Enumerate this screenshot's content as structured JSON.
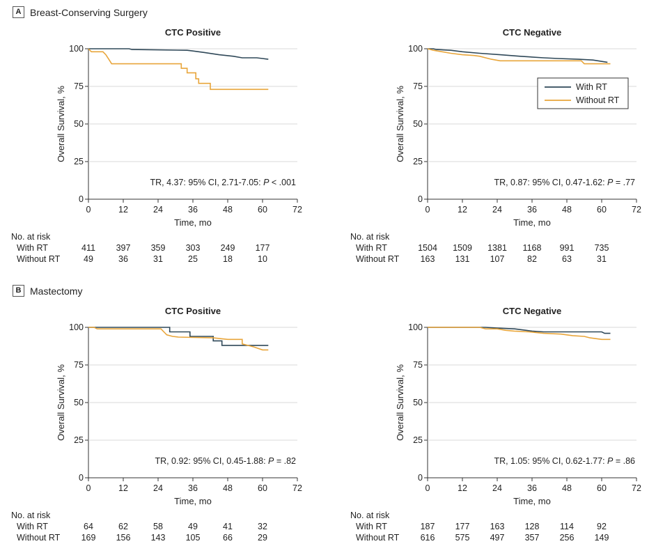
{
  "panels": [
    {
      "id": "A",
      "label": "Breast-Conserving Surgery"
    },
    {
      "id": "B",
      "label": "Mastectomy"
    }
  ],
  "colors": {
    "with_rt": "#2f4858",
    "without_rt": "#e8a53a",
    "axis": "#333333",
    "grid": "#d9d9d9"
  },
  "risk_header": "No. at risk",
  "chart_data": [
    {
      "type": "line",
      "panel": "A",
      "title": "CTC Positive",
      "xlabel": "Time, mo",
      "ylabel": "Overall Survival, %",
      "x_ticks": [
        0,
        12,
        24,
        36,
        48,
        60,
        72
      ],
      "y_ticks": [
        0,
        25,
        50,
        75,
        100
      ],
      "xlim": [
        0,
        72
      ],
      "ylim": [
        0,
        100
      ],
      "annotation": {
        "prefix": "TR, 4.37: 95% CI, 2.71-7.05: ",
        "p_label": "P",
        "p_value": " < .001"
      },
      "series": [
        {
          "name": "With RT",
          "points": [
            [
              0,
              100
            ],
            [
              14,
              100
            ],
            [
              15,
              99.5
            ],
            [
              34,
              99
            ],
            [
              36,
              98.5
            ],
            [
              40,
              97.5
            ],
            [
              45,
              96
            ],
            [
              50,
              95
            ],
            [
              53,
              94
            ],
            [
              58,
              94
            ],
            [
              60,
              93.5
            ],
            [
              62,
              93
            ]
          ]
        },
        {
          "name": "Without RT",
          "points": [
            [
              0,
              100
            ],
            [
              1,
              98
            ],
            [
              5,
              98
            ],
            [
              6,
              96
            ],
            [
              6,
              96
            ],
            [
              7,
              93
            ],
            [
              8,
              90
            ],
            [
              32,
              90
            ],
            [
              32,
              87
            ],
            [
              34,
              87
            ],
            [
              34,
              84
            ],
            [
              37,
              84
            ],
            [
              37,
              80
            ],
            [
              38,
              80
            ],
            [
              38,
              77
            ],
            [
              42,
              77
            ],
            [
              42,
              73
            ],
            [
              62,
              73
            ]
          ]
        }
      ],
      "risk_table": {
        "times": [
          0,
          12,
          24,
          36,
          48,
          60
        ],
        "rows": [
          {
            "label": "With RT",
            "values": [
              "411",
              "397",
              "359",
              "303",
              "249",
              "177"
            ]
          },
          {
            "label": "Without RT",
            "values": [
              "49",
              "36",
              "31",
              "25",
              "18",
              "10"
            ]
          }
        ]
      },
      "legend": null
    },
    {
      "type": "line",
      "panel": "A",
      "title": "CTC Negative",
      "xlabel": "Time, mo",
      "ylabel": "Overall Survival, %",
      "x_ticks": [
        0,
        12,
        24,
        36,
        48,
        60,
        72
      ],
      "y_ticks": [
        0,
        25,
        50,
        75,
        100
      ],
      "xlim": [
        0,
        72
      ],
      "ylim": [
        0,
        100
      ],
      "annotation": {
        "prefix": "TR, 0.87: 95% CI, 0.47-1.62: ",
        "p_label": "P",
        "p_value": " = .77"
      },
      "series": [
        {
          "name": "With RT",
          "points": [
            [
              0,
              100
            ],
            [
              2,
              100
            ],
            [
              3,
              99.5
            ],
            [
              8,
              99
            ],
            [
              12,
              98
            ],
            [
              18,
              97
            ],
            [
              25,
              96
            ],
            [
              32,
              95
            ],
            [
              40,
              94
            ],
            [
              45,
              93.5
            ],
            [
              52,
              93
            ],
            [
              57,
              92.5
            ],
            [
              62,
              91
            ]
          ]
        },
        {
          "name": "Without RT",
          "points": [
            [
              0,
              100
            ],
            [
              2,
              99
            ],
            [
              5,
              98
            ],
            [
              8,
              97
            ],
            [
              12,
              96
            ],
            [
              16,
              95.5
            ],
            [
              18,
              95
            ],
            [
              20,
              94
            ],
            [
              22,
              93
            ],
            [
              25,
              92
            ],
            [
              53,
              92
            ],
            [
              54,
              90
            ],
            [
              63,
              90
            ]
          ]
        }
      ],
      "risk_table": {
        "times": [
          0,
          12,
          24,
          36,
          48,
          60
        ],
        "rows": [
          {
            "label": "With RT",
            "values": [
              "1504",
              "1509",
              "1381",
              "1168",
              "991",
              "735"
            ]
          },
          {
            "label": "Without RT",
            "values": [
              "163",
              "131",
              "107",
              "82",
              "63",
              "31"
            ]
          }
        ]
      },
      "legend": {
        "position": "top-right",
        "entries": [
          "With RT",
          "Without RT"
        ]
      }
    },
    {
      "type": "line",
      "panel": "B",
      "title": "CTC Positive",
      "xlabel": "Time, mo",
      "ylabel": "Overall Survival, %",
      "x_ticks": [
        0,
        12,
        24,
        36,
        48,
        60,
        72
      ],
      "y_ticks": [
        0,
        25,
        50,
        75,
        100
      ],
      "xlim": [
        0,
        72
      ],
      "ylim": [
        0,
        100
      ],
      "annotation": {
        "prefix": "TR, 0.92: 95% CI, 0.45-1.88: ",
        "p_label": "P",
        "p_value": " = .82"
      },
      "series": [
        {
          "name": "With RT",
          "points": [
            [
              0,
              100
            ],
            [
              28,
              100
            ],
            [
              28,
              97
            ],
            [
              35,
              97
            ],
            [
              35,
              94
            ],
            [
              43,
              94
            ],
            [
              43,
              91
            ],
            [
              46,
              91
            ],
            [
              46,
              88
            ],
            [
              62,
              88
            ]
          ]
        },
        {
          "name": "Without RT",
          "points": [
            [
              0,
              100
            ],
            [
              2,
              100
            ],
            [
              3,
              99
            ],
            [
              25,
              99
            ],
            [
              26,
              97
            ],
            [
              27,
              95
            ],
            [
              29,
              94
            ],
            [
              31,
              93.5
            ],
            [
              43,
              93
            ],
            [
              48,
              92
            ],
            [
              53,
              92
            ],
            [
              53,
              89
            ],
            [
              57,
              87
            ],
            [
              60,
              85
            ],
            [
              62,
              85
            ]
          ]
        }
      ],
      "risk_table": {
        "times": [
          0,
          12,
          24,
          36,
          48,
          60
        ],
        "rows": [
          {
            "label": "With RT",
            "values": [
              "64",
              "62",
              "58",
              "49",
              "41",
              "32"
            ]
          },
          {
            "label": "Without RT",
            "values": [
              "169",
              "156",
              "143",
              "105",
              "66",
              "29"
            ]
          }
        ]
      },
      "legend": null
    },
    {
      "type": "line",
      "panel": "B",
      "title": "CTC Negative",
      "xlabel": "Time, mo",
      "ylabel": "Overall Survival, %",
      "x_ticks": [
        0,
        12,
        24,
        36,
        48,
        60,
        72
      ],
      "y_ticks": [
        0,
        25,
        50,
        75,
        100
      ],
      "xlim": [
        0,
        72
      ],
      "ylim": [
        0,
        100
      ],
      "annotation": {
        "prefix": "TR, 1.05: 95% CI, 0.62-1.77: ",
        "p_label": "P",
        "p_value": " = .86"
      },
      "series": [
        {
          "name": "With RT",
          "points": [
            [
              0,
              100
            ],
            [
              20,
              100
            ],
            [
              24,
              99.5
            ],
            [
              30,
              99
            ],
            [
              34,
              98
            ],
            [
              36,
              97.5
            ],
            [
              40,
              97
            ],
            [
              50,
              97
            ],
            [
              60,
              97
            ],
            [
              61,
              96
            ],
            [
              63,
              96
            ]
          ]
        },
        {
          "name": "Without RT",
          "points": [
            [
              0,
              100
            ],
            [
              18,
              100
            ],
            [
              20,
              99
            ],
            [
              24,
              99
            ],
            [
              27,
              98
            ],
            [
              30,
              97.5
            ],
            [
              35,
              97
            ],
            [
              40,
              96
            ],
            [
              46,
              95.5
            ],
            [
              50,
              94.5
            ],
            [
              54,
              94
            ],
            [
              56,
              93
            ],
            [
              58,
              92.5
            ],
            [
              60,
              92
            ],
            [
              63,
              92
            ]
          ]
        }
      ],
      "risk_table": {
        "times": [
          0,
          12,
          24,
          36,
          48,
          60
        ],
        "rows": [
          {
            "label": "With RT",
            "values": [
              "187",
              "177",
              "163",
              "128",
              "114",
              "92"
            ]
          },
          {
            "label": "Without RT",
            "values": [
              "616",
              "575",
              "497",
              "357",
              "256",
              "149"
            ]
          }
        ]
      },
      "legend": null
    }
  ]
}
